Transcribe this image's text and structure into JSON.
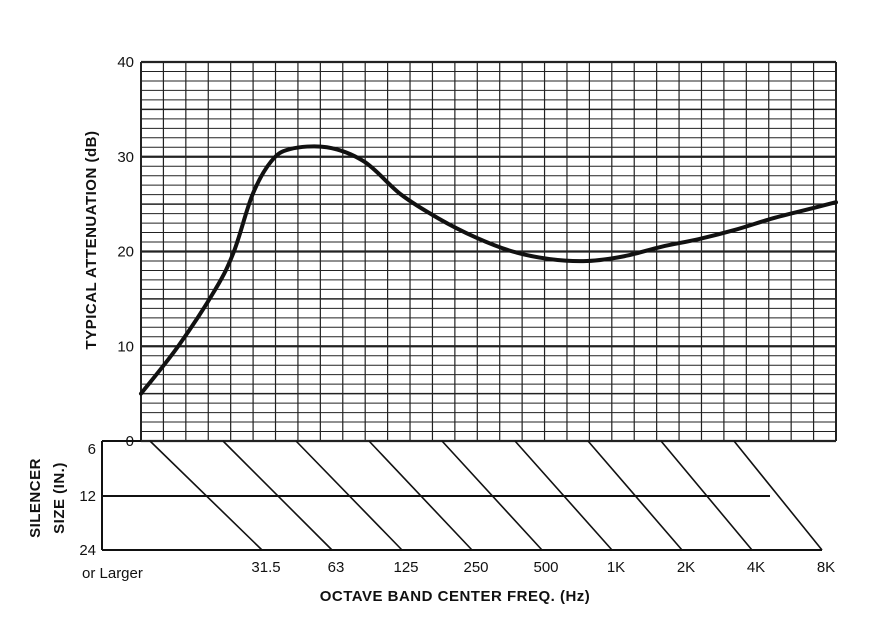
{
  "chart_data": {
    "type": "line",
    "ylabel": "TYPICAL ATTENUATION (dB)",
    "xlabel": "OCTAVE BAND CENTER FREQ. (Hz)",
    "ylim": [
      0,
      40
    ],
    "yticks": [
      "0",
      "10",
      "20",
      "30",
      "40"
    ],
    "grid": true,
    "series": [
      {
        "points": [
          {
            "x": 0.0,
            "y": 5
          },
          {
            "x": 1.0,
            "y": 10
          },
          {
            "x": 2.0,
            "y": 16
          },
          {
            "x": 2.5,
            "y": 20
          },
          {
            "x": 3.0,
            "y": 26
          },
          {
            "x": 3.5,
            "y": 29.5
          },
          {
            "x": 4.0,
            "y": 30.8
          },
          {
            "x": 5.0,
            "y": 31
          },
          {
            "x": 6.0,
            "y": 29.5
          },
          {
            "x": 7.0,
            "y": 26
          },
          {
            "x": 8.0,
            "y": 23.5
          },
          {
            "x": 9.0,
            "y": 21.5
          },
          {
            "x": 10.0,
            "y": 20
          },
          {
            "x": 11.0,
            "y": 19.2
          },
          {
            "x": 12.0,
            "y": 19
          },
          {
            "x": 13.0,
            "y": 19.5
          },
          {
            "x": 14.0,
            "y": 20.5
          },
          {
            "x": 15.0,
            "y": 21.3
          },
          {
            "x": 16.0,
            "y": 22.3
          },
          {
            "x": 17.0,
            "y": 23.5
          },
          {
            "x": 18.0,
            "y": 24.5
          },
          {
            "x": 18.7,
            "y": 25.2
          }
        ]
      }
    ],
    "nomograph": {
      "title": "SILENCER SIZE (IN.)",
      "title_lines": [
        "SILENCER",
        "SIZE (IN.)"
      ],
      "sizes": [
        "6",
        "12",
        "24"
      ],
      "size_suffix": "or Larger",
      "frequencies": [
        "31.5",
        "63",
        "125",
        "250",
        "500",
        "1K",
        "2K",
        "4K",
        "8K"
      ]
    }
  }
}
